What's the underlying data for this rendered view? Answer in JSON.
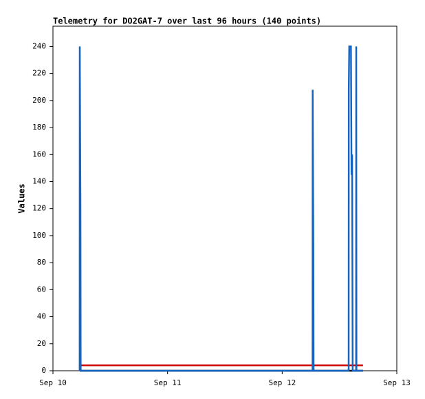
{
  "chart_data": {
    "type": "line",
    "title": "Telemetry for DO2GAT-7 over last 96 hours (140 points)",
    "y_label": "Values",
    "xlim": [
      0,
      3
    ],
    "xticks": [
      {
        "value": 0,
        "label": "Sep 10"
      },
      {
        "value": 1,
        "label": "Sep 11"
      },
      {
        "value": 2,
        "label": "Sep 12"
      },
      {
        "value": 3,
        "label": "Sep 13"
      }
    ],
    "ylim": [
      0,
      255
    ],
    "yticks": [
      0,
      20,
      40,
      60,
      80,
      100,
      120,
      140,
      160,
      180,
      200,
      220,
      240
    ],
    "series": [
      {
        "color": "#000000",
        "x": [
          0.234,
          2.705
        ],
        "values": [
          0,
          0
        ]
      },
      {
        "color": "#cc0000",
        "x": [
          0.234,
          2.705
        ],
        "values": [
          4,
          4
        ]
      },
      {
        "color": "#1565c0",
        "x": [
          0.233,
          0.234,
          0.24,
          0.242,
          2.265,
          2.266,
          2.272,
          2.274,
          2.58,
          2.581,
          2.585,
          2.6,
          2.605,
          2.61,
          2.615,
          2.645,
          2.646,
          2.648,
          2.705
        ],
        "values": [
          0,
          240,
          121,
          0,
          0,
          208,
          88,
          0,
          0,
          208,
          240,
          240,
          145,
          160,
          0,
          0,
          240,
          0,
          0
        ]
      }
    ]
  }
}
